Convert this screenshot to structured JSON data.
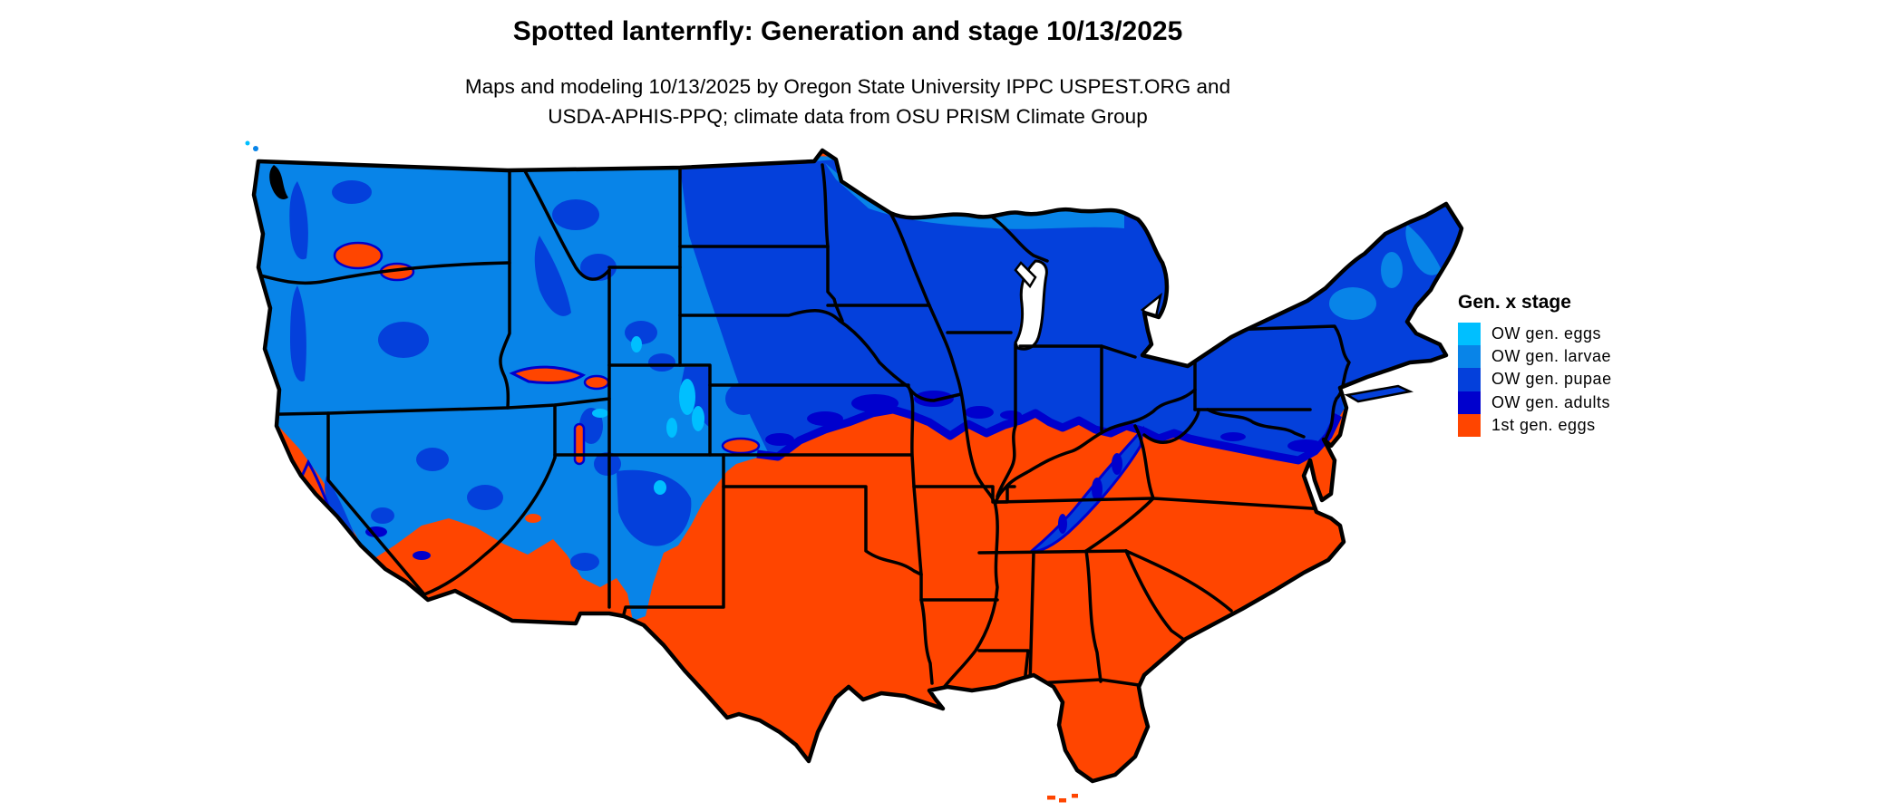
{
  "title": "Spotted lanternfly: Generation and stage 10/13/2025",
  "subtitle_line1": "Maps and modeling 10/13/2025 by Oregon State University IPPC USPEST.ORG and",
  "subtitle_line2": "USDA-APHIS-PPQ; climate data from OSU PRISM Climate Group",
  "legend": {
    "title": "Gen. x stage",
    "items": [
      {
        "label": "OW gen. eggs",
        "color": "#00BFFF"
      },
      {
        "label": "OW gen. larvae",
        "color": "#0884E8"
      },
      {
        "label": "OW gen. pupae",
        "color": "#0440DB"
      },
      {
        "label": "OW gen. adults",
        "color": "#0000CD"
      },
      {
        "label": "1st gen. eggs",
        "color": "#FF4500"
      }
    ]
  },
  "map": {
    "region_label": "Contiguous United States",
    "date_shown": "10/13/2025"
  }
}
